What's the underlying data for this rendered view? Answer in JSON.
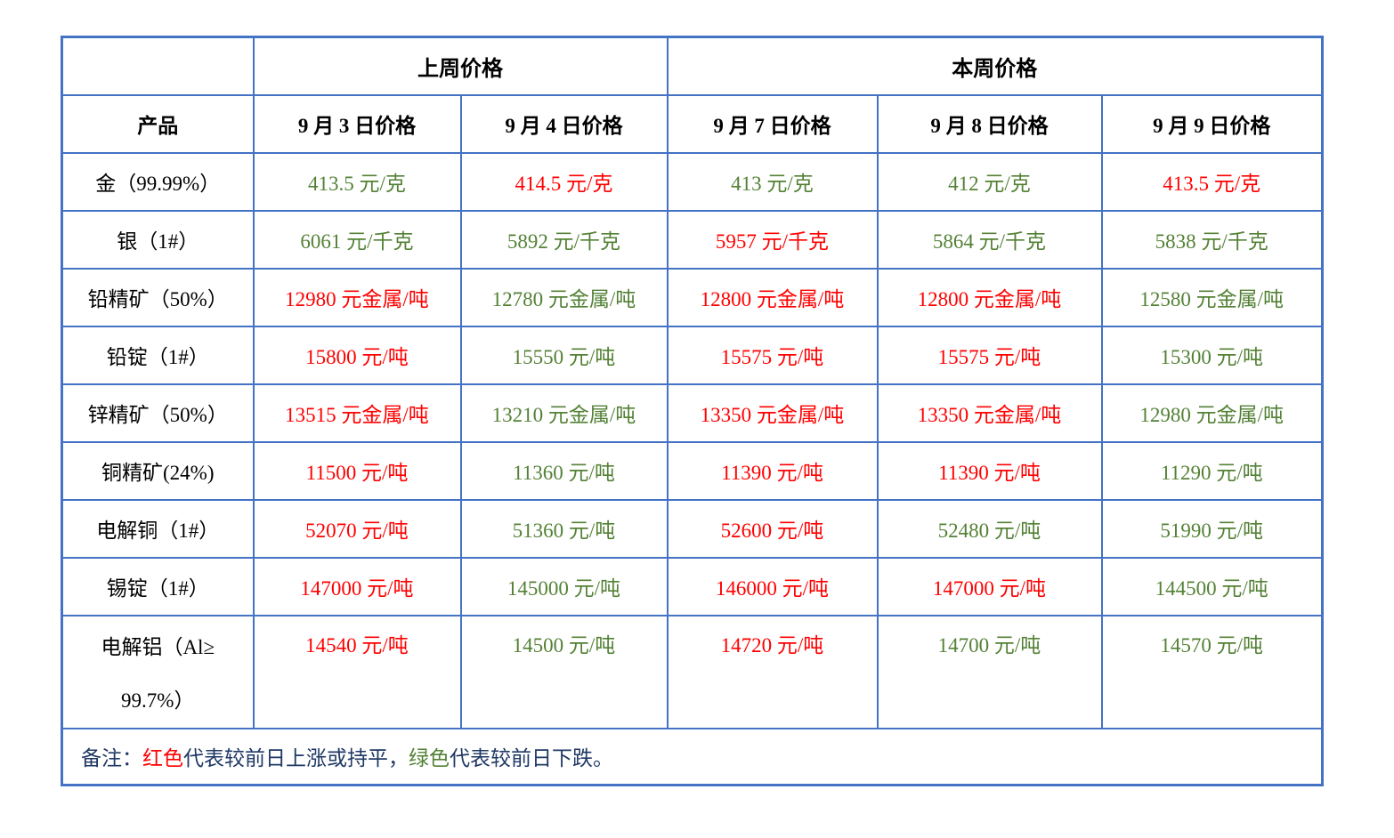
{
  "colors": {
    "up_red": "#ff0000",
    "down_green": "#538135",
    "table_border_blue": "#4472c4",
    "note_text": "#1f3864",
    "label_text": "#000000"
  },
  "table": {
    "group_headers": [
      {
        "label": "上周价格",
        "span": 2
      },
      {
        "label": "本周价格",
        "span": 3
      }
    ],
    "column_headers": [
      "产品",
      "9 月 3 日价格",
      "9 月 4 日价格",
      "9 月 7 日价格",
      "9 月 8 日价格",
      "9 月 9 日价格"
    ],
    "rows": [
      {
        "product": "金（99.99%）",
        "values": [
          {
            "text": "413.5 元/克",
            "color": "green"
          },
          {
            "text": "414.5 元/克",
            "color": "red"
          },
          {
            "text": "413 元/克",
            "color": "green"
          },
          {
            "text": "412 元/克",
            "color": "green"
          },
          {
            "text": "413.5 元/克",
            "color": "red"
          }
        ]
      },
      {
        "product": "银（1#）",
        "values": [
          {
            "text": "6061 元/千克",
            "color": "green"
          },
          {
            "text": "5892 元/千克",
            "color": "green"
          },
          {
            "text": "5957 元/千克",
            "color": "red"
          },
          {
            "text": "5864 元/千克",
            "color": "green"
          },
          {
            "text": "5838 元/千克",
            "color": "green"
          }
        ]
      },
      {
        "product": "铅精矿（50%）",
        "values": [
          {
            "text": "12980 元金属/吨",
            "color": "red"
          },
          {
            "text": "12780 元金属/吨",
            "color": "green"
          },
          {
            "text": "12800 元金属/吨",
            "color": "red"
          },
          {
            "text": "12800 元金属/吨",
            "color": "red"
          },
          {
            "text": "12580 元金属/吨",
            "color": "green"
          }
        ]
      },
      {
        "product": "铅锭（1#）",
        "values": [
          {
            "text": "15800 元/吨",
            "color": "red"
          },
          {
            "text": "15550 元/吨",
            "color": "green"
          },
          {
            "text": "15575 元/吨",
            "color": "red"
          },
          {
            "text": "15575 元/吨",
            "color": "red"
          },
          {
            "text": "15300 元/吨",
            "color": "green"
          }
        ]
      },
      {
        "product": "锌精矿（50%）",
        "values": [
          {
            "text": "13515 元金属/吨",
            "color": "red"
          },
          {
            "text": "13210 元金属/吨",
            "color": "green"
          },
          {
            "text": "13350 元金属/吨",
            "color": "red"
          },
          {
            "text": "13350 元金属/吨",
            "color": "red"
          },
          {
            "text": "12980 元金属/吨",
            "color": "green"
          }
        ]
      },
      {
        "product": "铜精矿(24%)",
        "values": [
          {
            "text": "11500 元/吨",
            "color": "red"
          },
          {
            "text": "11360 元/吨",
            "color": "green"
          },
          {
            "text": "11390 元/吨",
            "color": "red"
          },
          {
            "text": "11390 元/吨",
            "color": "red"
          },
          {
            "text": "11290 元/吨",
            "color": "green"
          }
        ]
      },
      {
        "product": "电解铜（1#）",
        "values": [
          {
            "text": "52070 元/吨",
            "color": "red"
          },
          {
            "text": "51360 元/吨",
            "color": "green"
          },
          {
            "text": "52600 元/吨",
            "color": "red"
          },
          {
            "text": "52480 元/吨",
            "color": "green"
          },
          {
            "text": "51990 元/吨",
            "color": "green"
          }
        ]
      },
      {
        "product": "锡锭（1#）",
        "values": [
          {
            "text": "147000 元/吨",
            "color": "red"
          },
          {
            "text": "145000 元/吨",
            "color": "green"
          },
          {
            "text": "146000 元/吨",
            "color": "red"
          },
          {
            "text": "147000 元/吨",
            "color": "red"
          },
          {
            "text": "144500 元/吨",
            "color": "green"
          }
        ]
      },
      {
        "product": "电解铝（Al≥99.7%）",
        "tall": true,
        "label_lines": [
          "电解铝（Al≥",
          "99.7%）"
        ],
        "values": [
          {
            "text": "14540 元/吨",
            "color": "red"
          },
          {
            "text": "14500 元/吨",
            "color": "green"
          },
          {
            "text": "14720 元/吨",
            "color": "red"
          },
          {
            "text": "14700 元/吨",
            "color": "green"
          },
          {
            "text": "14570 元/吨",
            "color": "green"
          }
        ]
      }
    ],
    "note_segments": [
      {
        "text": "备注：",
        "color": "note"
      },
      {
        "text": "红色",
        "color": "red"
      },
      {
        "text": "代表较前日上涨或持平，",
        "color": "note"
      },
      {
        "text": "绿色",
        "color": "green"
      },
      {
        "text": "代表较前日下跌。",
        "color": "note"
      }
    ]
  }
}
